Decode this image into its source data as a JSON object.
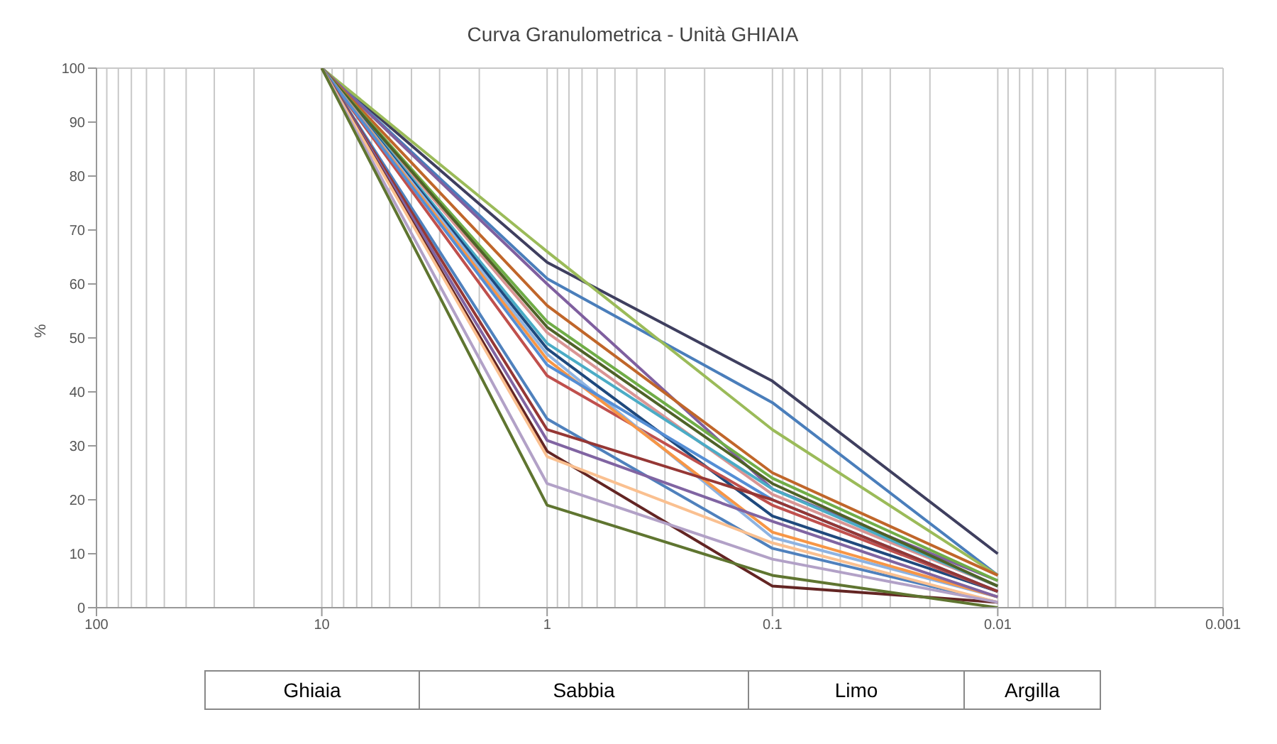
{
  "chart_data": {
    "type": "line",
    "title": "Curva Granulometrica - Unità GHIAIA",
    "ylabel": "%",
    "x": [
      10,
      1,
      0.1,
      0.01
    ],
    "series": [
      {
        "color": "#3f3f5f",
        "values": [
          100,
          64,
          42,
          10
        ]
      },
      {
        "color": "#4a7ebb",
        "values": [
          100,
          61,
          38,
          6
        ]
      },
      {
        "color": "#9bbb59",
        "values": [
          100,
          66,
          33,
          6
        ]
      },
      {
        "color": "#7f5f9f",
        "values": [
          100,
          60,
          22,
          5
        ]
      },
      {
        "color": "#c0662a",
        "values": [
          100,
          56,
          25,
          6
        ]
      },
      {
        "color": "#70ad47",
        "values": [
          100,
          53,
          24,
          5
        ]
      },
      {
        "color": "#d99594",
        "values": [
          100,
          51,
          21,
          4
        ]
      },
      {
        "color": "#4bacc6",
        "values": [
          100,
          49,
          22,
          4
        ]
      },
      {
        "color": "#1f497d",
        "values": [
          100,
          48,
          17,
          3
        ]
      },
      {
        "color": "#4f6228",
        "values": [
          100,
          52,
          23,
          4
        ]
      },
      {
        "color": "#c0504d",
        "values": [
          100,
          43,
          19,
          3
        ]
      },
      {
        "color": "#8db3e2",
        "values": [
          100,
          47,
          13,
          2
        ]
      },
      {
        "color": "#f79646",
        "values": [
          100,
          46,
          14,
          2
        ]
      },
      {
        "color": "#558ed5",
        "values": [
          100,
          45,
          20,
          3
        ]
      },
      {
        "color": "#4f81bd",
        "values": [
          100,
          35,
          11,
          1
        ]
      },
      {
        "color": "#953735",
        "values": [
          100,
          33,
          20,
          3
        ]
      },
      {
        "color": "#8064a2",
        "values": [
          100,
          31,
          16,
          2
        ]
      },
      {
        "color": "#632523",
        "values": [
          100,
          29,
          4,
          1
        ]
      },
      {
        "color": "#fac090",
        "values": [
          100,
          28,
          12,
          1
        ]
      },
      {
        "color": "#b2a1c7",
        "values": [
          100,
          23,
          9,
          1
        ]
      },
      {
        "color": "#5f7530",
        "values": [
          100,
          19,
          6,
          0
        ]
      }
    ],
    "xlim": [
      100,
      0.001
    ],
    "xticks": [
      100,
      10,
      1,
      0.1,
      0.01,
      0.001
    ],
    "ylim": [
      0,
      100
    ],
    "yticks": [
      0,
      10,
      20,
      30,
      40,
      50,
      60,
      70,
      80,
      90,
      100
    ],
    "log": "x",
    "grid": true,
    "marker": "none",
    "line_style": "solid",
    "annotations": [
      "Ghiaia",
      "Sabbia",
      "Limo",
      "Argilla"
    ]
  }
}
